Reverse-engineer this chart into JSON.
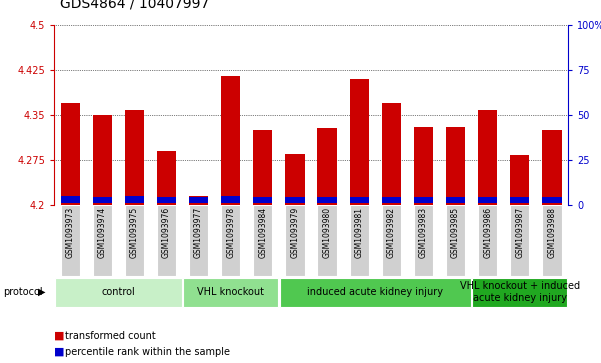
{
  "title": "GDS4864 / 10407997",
  "samples": [
    "GSM1093973",
    "GSM1093974",
    "GSM1093975",
    "GSM1093976",
    "GSM1093977",
    "GSM1093978",
    "GSM1093984",
    "GSM1093979",
    "GSM1093980",
    "GSM1093981",
    "GSM1093982",
    "GSM1093983",
    "GSM1093985",
    "GSM1093986",
    "GSM1093987",
    "GSM1093988"
  ],
  "red_values": [
    4.37,
    4.35,
    4.358,
    4.29,
    4.215,
    4.415,
    4.325,
    4.285,
    4.328,
    4.41,
    4.37,
    4.33,
    4.33,
    4.358,
    4.283,
    4.325
  ],
  "blue_values": [
    0.012,
    0.01,
    0.012,
    0.011,
    0.01,
    0.012,
    0.011,
    0.011,
    0.01,
    0.011,
    0.011,
    0.011,
    0.011,
    0.011,
    0.011,
    0.011
  ],
  "y_min": 4.2,
  "y_max": 4.5,
  "y_ticks_red": [
    4.2,
    4.275,
    4.35,
    4.425,
    4.5
  ],
  "y_ticks_blue": [
    0,
    25,
    50,
    75,
    100
  ],
  "groups": [
    {
      "label": "control",
      "start": 0,
      "end": 4,
      "color": "#c8f0c8"
    },
    {
      "label": "VHL knockout",
      "start": 4,
      "end": 7,
      "color": "#90e090"
    },
    {
      "label": "induced acute kidney injury",
      "start": 7,
      "end": 13,
      "color": "#50c850"
    },
    {
      "label": "VHL knockout + induced\nacute kidney injury",
      "start": 13,
      "end": 16,
      "color": "#20a820"
    }
  ],
  "bar_color_red": "#cc0000",
  "bar_color_blue": "#0000cc",
  "bar_width": 0.6,
  "background_color": "#ffffff",
  "xlabel_color": "#cc0000",
  "ylabel_right_color": "#0000cc",
  "grid_color": "#000000",
  "tick_label_bg": "#d0d0d0",
  "legend_red_label": "transformed count",
  "legend_blue_label": "percentile rank within the sample",
  "protocol_label": "protocol",
  "title_fontsize": 10,
  "tick_fontsize": 7,
  "group_fontsize": 7
}
